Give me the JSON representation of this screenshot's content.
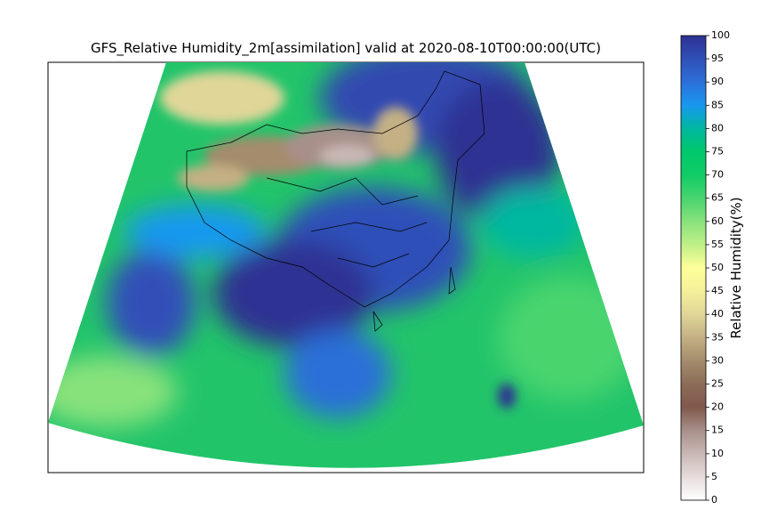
{
  "title": "GFS_Relative Humidity_2m[assimilation]  valid at 2020-08-10T00:00:00(UTC)",
  "colorbar": {
    "label": "Relative Humidity(%)",
    "lim": [
      0,
      100
    ],
    "ticks": [
      0,
      5,
      10,
      15,
      20,
      25,
      30,
      35,
      40,
      45,
      50,
      55,
      60,
      65,
      70,
      75,
      80,
      85,
      90,
      95,
      100
    ],
    "colormap": [
      "#ffffff",
      "#e6dcdc",
      "#c9b8b4",
      "#a8908a",
      "#80584c",
      "#8c6c58",
      "#a48c6c",
      "#c4b084",
      "#e0d698",
      "#f4f09a",
      "#ffff99",
      "#bfef88",
      "#88e27c",
      "#48d46e",
      "#10cc66",
      "#00c86c",
      "#00b8a0",
      "#1898f0",
      "#2c70d8",
      "#3050b8",
      "#2e3192"
    ]
  }
}
